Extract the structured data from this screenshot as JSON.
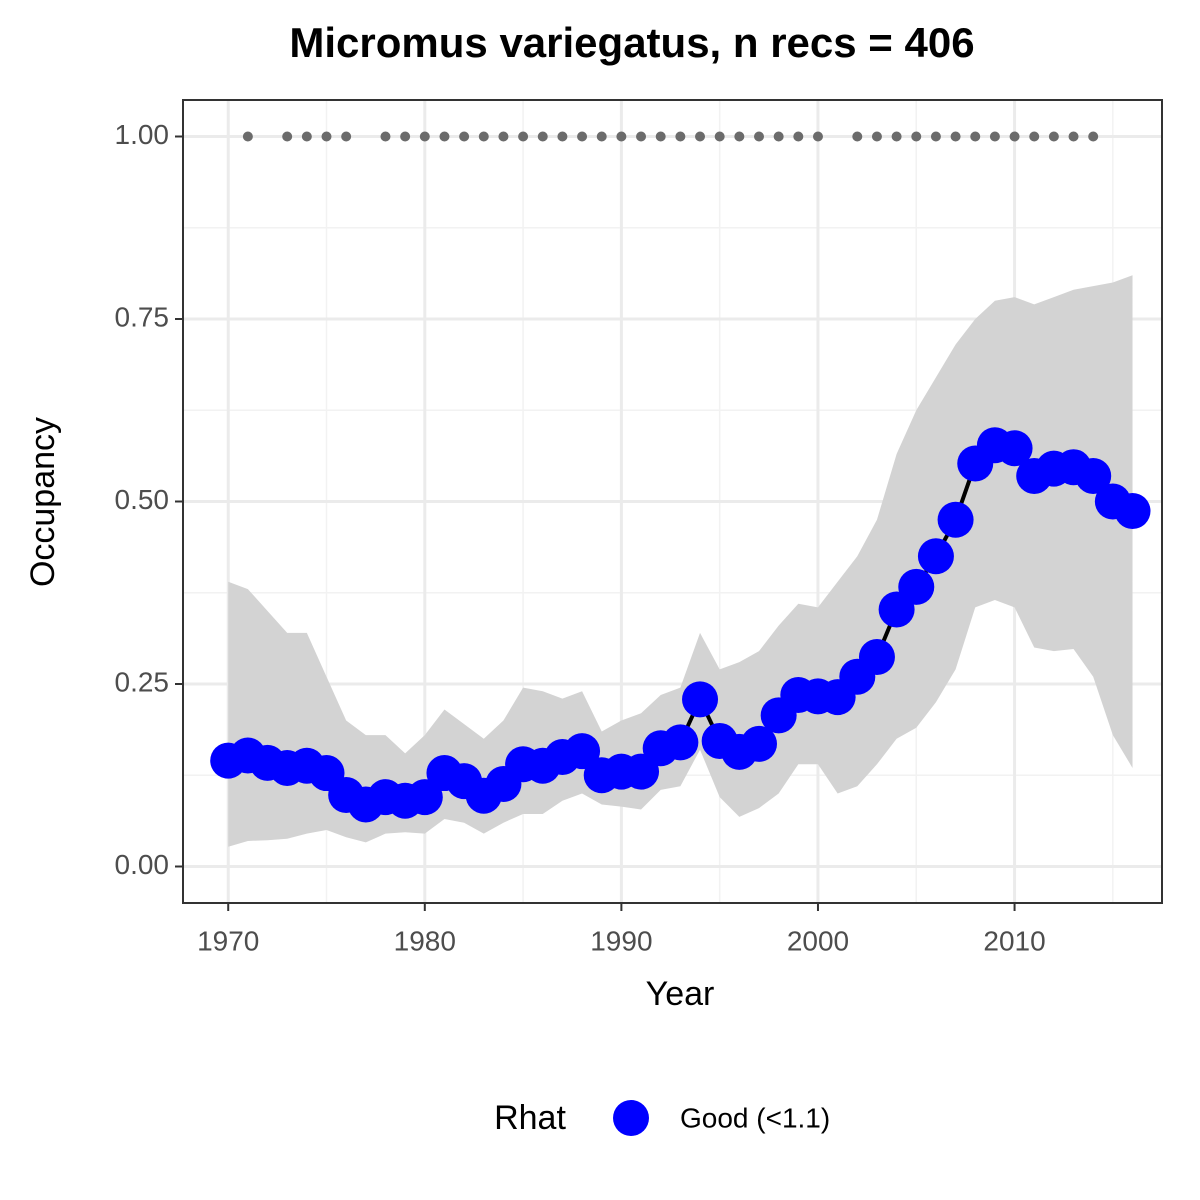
{
  "chart_data": {
    "type": "line",
    "title": "Micromus variegatus, n recs = 406",
    "x_label": "Year",
    "y_label": "Occupancy",
    "legend_title": "Rhat",
    "x": [
      1970,
      1971,
      1972,
      1973,
      1974,
      1975,
      1976,
      1977,
      1978,
      1979,
      1980,
      1981,
      1982,
      1983,
      1984,
      1985,
      1986,
      1987,
      1988,
      1989,
      1990,
      1991,
      1992,
      1993,
      1994,
      1995,
      1996,
      1997,
      1998,
      1999,
      2000,
      2001,
      2002,
      2003,
      2004,
      2005,
      2006,
      2007,
      2008,
      2009,
      2010,
      2011,
      2012,
      2013,
      2014,
      2015,
      2016
    ],
    "series": [
      {
        "name": "Good (<1.1)",
        "color": "#0000ff",
        "values": [
          0.145,
          0.152,
          0.142,
          0.135,
          0.138,
          0.128,
          0.098,
          0.085,
          0.095,
          0.09,
          0.095,
          0.128,
          0.117,
          0.097,
          0.113,
          0.14,
          0.138,
          0.15,
          0.158,
          0.125,
          0.13,
          0.13,
          0.162,
          0.17,
          0.229,
          0.172,
          0.157,
          0.168,
          0.207,
          0.235,
          0.233,
          0.232,
          0.26,
          0.287,
          0.352,
          0.383,
          0.425,
          0.475,
          0.552,
          0.577,
          0.573,
          0.535,
          0.545,
          0.547,
          0.535,
          0.5,
          0.487
        ],
        "upper": [
          0.39,
          0.38,
          0.35,
          0.32,
          0.32,
          0.26,
          0.2,
          0.18,
          0.18,
          0.155,
          0.18,
          0.215,
          0.195,
          0.175,
          0.2,
          0.245,
          0.24,
          0.23,
          0.24,
          0.185,
          0.2,
          0.21,
          0.235,
          0.245,
          0.32,
          0.27,
          0.28,
          0.295,
          0.33,
          0.36,
          0.355,
          0.39,
          0.425,
          0.475,
          0.565,
          0.625,
          0.67,
          0.715,
          0.75,
          0.775,
          0.78,
          0.77,
          0.78,
          0.79,
          0.795,
          0.8,
          0.81
        ],
        "lower": [
          0.027,
          0.035,
          0.036,
          0.038,
          0.045,
          0.05,
          0.04,
          0.033,
          0.045,
          0.047,
          0.045,
          0.065,
          0.06,
          0.045,
          0.06,
          0.072,
          0.072,
          0.09,
          0.1,
          0.085,
          0.082,
          0.078,
          0.105,
          0.11,
          0.16,
          0.095,
          0.068,
          0.08,
          0.1,
          0.14,
          0.14,
          0.1,
          0.11,
          0.14,
          0.175,
          0.19,
          0.225,
          0.27,
          0.355,
          0.365,
          0.355,
          0.3,
          0.295,
          0.298,
          0.26,
          0.18,
          0.135
        ]
      }
    ],
    "records": {
      "color": "#6b6b6b",
      "x": [
        1971,
        1973,
        1974,
        1975,
        1976,
        1978,
        1979,
        1980,
        1981,
        1982,
        1983,
        1984,
        1985,
        1986,
        1987,
        1988,
        1989,
        1990,
        1991,
        1992,
        1993,
        1994,
        1995,
        1996,
        1997,
        1998,
        1999,
        2000,
        2002,
        2003,
        2004,
        2005,
        2006,
        2007,
        2008,
        2009,
        2010,
        2011,
        2012,
        2013,
        2014
      ],
      "values": [
        1,
        1,
        1,
        1,
        1,
        1,
        1,
        1,
        1,
        1,
        1,
        1,
        1,
        1,
        1,
        1,
        1,
        1,
        1,
        1,
        1,
        1,
        1,
        1,
        1,
        1,
        1,
        1,
        1,
        1,
        1,
        1,
        1,
        1,
        1,
        1,
        1,
        1,
        1,
        1,
        1
      ]
    },
    "ribbon_color": "#d3d3d3",
    "line_color": "#000000",
    "xlim": [
      1967.7,
      2017.5
    ],
    "ylim": [
      -0.05,
      1.05
    ],
    "xticks": [
      1970,
      1980,
      1990,
      2000,
      2010
    ],
    "yticks": [
      {
        "value": 0,
        "label": "0.00"
      },
      {
        "value": 0.25,
        "label": "0.25"
      },
      {
        "value": 0.5,
        "label": "0.50"
      },
      {
        "value": 0.75,
        "label": "0.75"
      },
      {
        "value": 1,
        "label": "1.00"
      }
    ],
    "x_minor_grid": [
      1975,
      1985,
      1995,
      2005,
      2015
    ],
    "y_minor_grid": [
      0.125,
      0.375,
      0.625,
      0.875
    ],
    "grid": true
  }
}
